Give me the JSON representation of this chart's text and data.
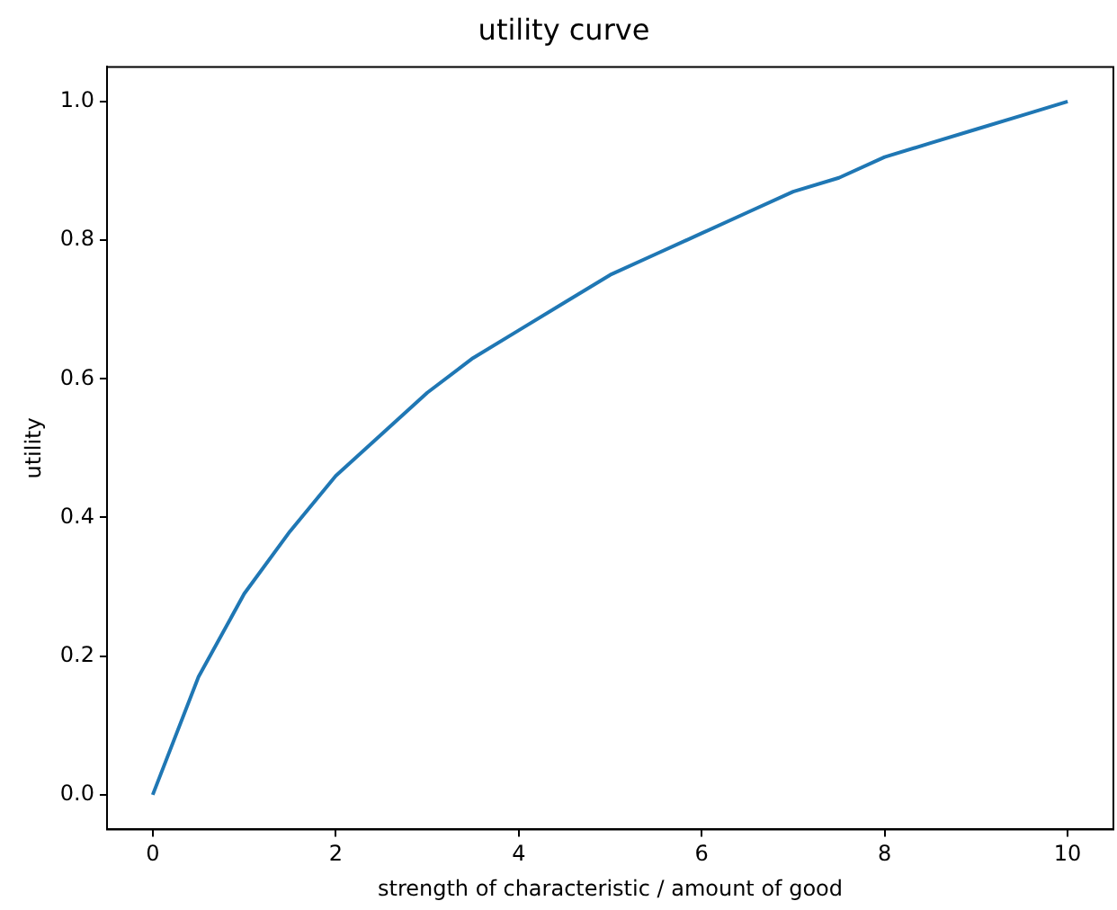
{
  "chart_data": {
    "type": "line",
    "title": "utility curve",
    "xlabel": "strength of characteristic / amount of good",
    "ylabel": "utility",
    "x": [
      0,
      0.5,
      1,
      1.5,
      2,
      2.5,
      3,
      3.5,
      4,
      4.5,
      5,
      5.5,
      6,
      6.5,
      7,
      7.5,
      8,
      8.5,
      9,
      9.5,
      10
    ],
    "series": [
      {
        "color": "#1f77b4",
        "values": [
          0,
          0.17,
          0.29,
          0.38,
          0.46,
          0.52,
          0.58,
          0.63,
          0.67,
          0.71,
          0.75,
          0.78,
          0.81,
          0.84,
          0.87,
          0.89,
          0.92,
          0.94,
          0.96,
          0.98,
          1.0
        ]
      }
    ],
    "xlim": [
      -0.5,
      10.5
    ],
    "xticks": [
      0,
      2,
      4,
      6,
      8,
      10
    ],
    "ylim": [
      -0.05,
      1.05
    ],
    "yticks": [
      {
        "value": 0,
        "label": "0.0"
      },
      {
        "value": 0.2,
        "label": "0.2"
      },
      {
        "value": 0.4,
        "label": "0.4"
      },
      {
        "value": 0.6,
        "label": "0.6"
      },
      {
        "value": 0.8,
        "label": "0.8"
      },
      {
        "value": 1,
        "label": "1.0"
      }
    ],
    "grid": false,
    "legend": false,
    "marker": "none",
    "line_style": "solid"
  }
}
